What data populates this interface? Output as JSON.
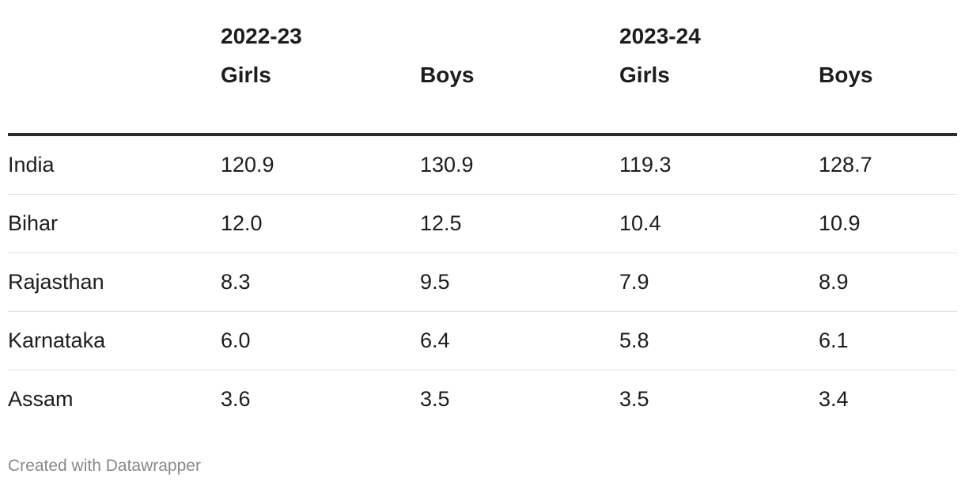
{
  "chart_data": {
    "type": "table",
    "column_groups": [
      {
        "label": "2022-23",
        "span": [
          "Girls",
          "Boys"
        ]
      },
      {
        "label": "2023-24",
        "span": [
          "Girls",
          "Boys"
        ]
      }
    ],
    "columns": [
      "",
      "Girls",
      "Boys",
      "Girls",
      "Boys"
    ],
    "rows": [
      {
        "label": "India",
        "values": [
          "120.9",
          "130.9",
          "119.3",
          "128.7"
        ]
      },
      {
        "label": "Bihar",
        "values": [
          "12.0",
          "12.5",
          "10.4",
          "10.9"
        ]
      },
      {
        "label": "Rajasthan",
        "values": [
          "8.3",
          "9.5",
          "7.9",
          "8.9"
        ]
      },
      {
        "label": "Karnataka",
        "values": [
          "6.0",
          "6.4",
          "5.8",
          "6.1"
        ]
      },
      {
        "label": "Assam",
        "values": [
          "3.6",
          "3.5",
          "3.5",
          "3.4"
        ]
      }
    ]
  },
  "footer": {
    "credit": "Created with Datawrapper"
  },
  "colors": {
    "text": "#1d1d1d",
    "header_rule": "#2b2b2b",
    "row_divider": "#e2e2e2",
    "credit": "#888888"
  }
}
